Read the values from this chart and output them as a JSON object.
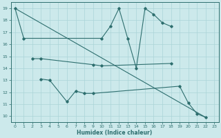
{
  "xlabel": "Humidex (Indice chaleur)",
  "xlim": [
    -0.5,
    23.5
  ],
  "ylim": [
    9.5,
    19.5
  ],
  "yticks": [
    10,
    11,
    12,
    13,
    14,
    15,
    16,
    17,
    18,
    19
  ],
  "xticks": [
    0,
    1,
    2,
    3,
    4,
    5,
    6,
    7,
    8,
    9,
    10,
    11,
    12,
    13,
    14,
    15,
    16,
    17,
    18,
    19,
    20,
    21,
    22,
    23
  ],
  "background_color": "#cce9eb",
  "grid_color": "#aad4d7",
  "line_color": "#2d6e6e",
  "line1_x": [
    0,
    1,
    10,
    11,
    12,
    13,
    14,
    15,
    16,
    17,
    18
  ],
  "line1_y": [
    19,
    16.5,
    16.5,
    17.5,
    19,
    16.5,
    14.0,
    19,
    18.5,
    17.8,
    17.5
  ],
  "line2_x": [
    2,
    3,
    9,
    10,
    18
  ],
  "line2_y": [
    14.8,
    14.8,
    14.3,
    14.2,
    14.4
  ],
  "line3_x": [
    3,
    4,
    6,
    7,
    8,
    9,
    19,
    20,
    21,
    22
  ],
  "line3_y": [
    13.1,
    13.0,
    11.2,
    12.1,
    11.9,
    11.9,
    12.5,
    11.1,
    10.2,
    9.9
  ],
  "trend_x": [
    0,
    22
  ],
  "trend_y": [
    19.0,
    9.9
  ]
}
